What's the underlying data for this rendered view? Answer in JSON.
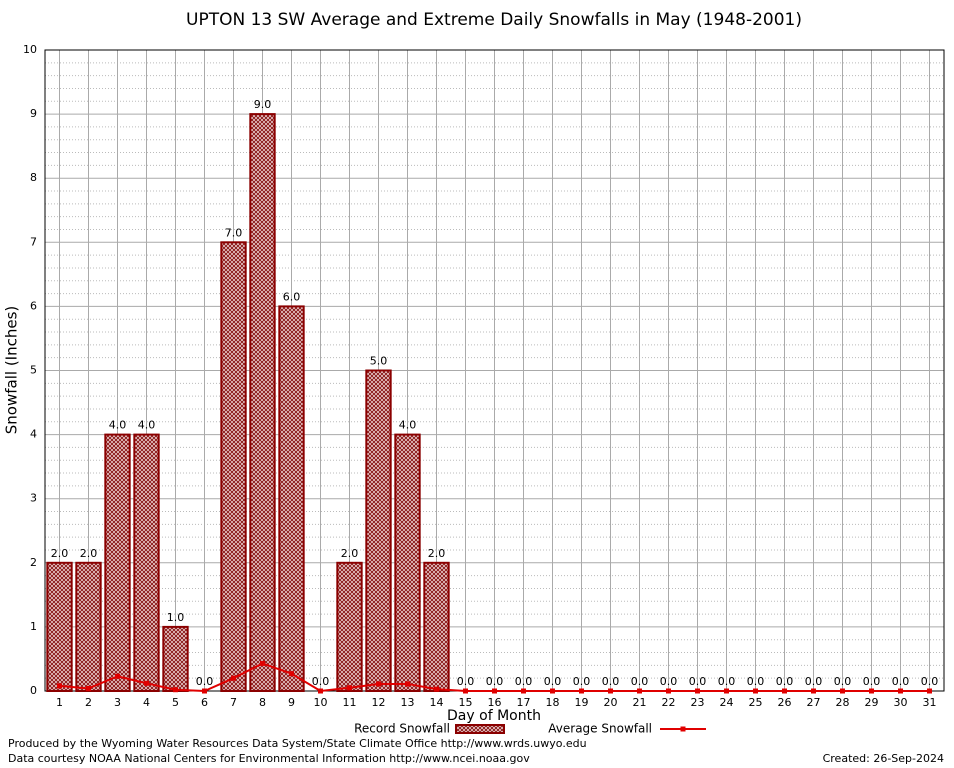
{
  "chart_data": {
    "type": "bar",
    "title": "UPTON 13 SW Average and Extreme Daily Snowfalls in May (1948-2001)",
    "x_label": "Day of Month",
    "y_label": "Snowfall (Inches)",
    "categories": [
      "1",
      "2",
      "3",
      "4",
      "5",
      "6",
      "7",
      "8",
      "9",
      "10",
      "11",
      "12",
      "13",
      "14",
      "15",
      "16",
      "17",
      "18",
      "19",
      "20",
      "21",
      "22",
      "23",
      "24",
      "25",
      "26",
      "27",
      "28",
      "29",
      "30",
      "31"
    ],
    "series": [
      {
        "name": "Record Snowfall",
        "type": "bar",
        "color": "#8b0000",
        "values": [
          2,
          2,
          4,
          4,
          1,
          0,
          7,
          9,
          6,
          0,
          2,
          5,
          4,
          2,
          0,
          0,
          0,
          0,
          0,
          0,
          0,
          0,
          0,
          0,
          0,
          0,
          0,
          0,
          0,
          0,
          0
        ],
        "value_labels": [
          "2.0",
          "2.0",
          "4.0",
          "4.0",
          "1.0",
          "0.0",
          "7.0",
          "9.0",
          "6.0",
          "0.0",
          "2.0",
          "5.0",
          "4.0",
          "2.0",
          "0.0",
          "0.0",
          "0.0",
          "0.0",
          "0.0",
          "0.0",
          "0.0",
          "0.0",
          "0.0",
          "0.0",
          "0.0",
          "0.0",
          "0.0",
          "0.0",
          "0.0",
          "0.0",
          "0.0"
        ]
      },
      {
        "name": "Average Snowfall",
        "type": "line",
        "color": "#e00000",
        "values": [
          0.08,
          0.04,
          0.23,
          0.12,
          0.02,
          0,
          0.2,
          0.43,
          0.27,
          0,
          0.05,
          0.11,
          0.11,
          0.03,
          0,
          0,
          0,
          0,
          0,
          0,
          0,
          0,
          0,
          0,
          0,
          0,
          0,
          0,
          0,
          0,
          0
        ]
      }
    ],
    "ylim": [
      0,
      10
    ],
    "yticks": [
      0,
      1,
      2,
      3,
      4,
      5,
      6,
      7,
      8,
      9,
      10
    ],
    "grid": true,
    "minor_grid_divisions": 5,
    "legend": "bottom",
    "notes": [
      "Produced by the Wyoming Water Resources Data System/State Climate Office http://www.wrds.uwyo.edu",
      "Data courtesy NOAA National Centers for Environmental Information http://www.ncei.noaa.gov"
    ],
    "created": "Created: 26-Sep-2024"
  }
}
